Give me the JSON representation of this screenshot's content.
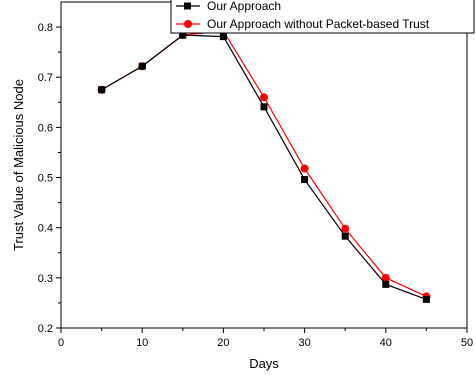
{
  "chart_data": {
    "type": "line",
    "x": [
      5,
      10,
      15,
      20,
      25,
      30,
      35,
      40,
      45
    ],
    "xlabel": "Days",
    "ylabel": "Trust Value of Malicious Node",
    "xlim": [
      0,
      50
    ],
    "ylim": [
      0.2,
      0.85
    ],
    "x_ticks": [
      "0",
      "10",
      "20",
      "30",
      "40",
      "50"
    ],
    "y_ticks": [
      "0.2",
      "0.3",
      "0.4",
      "0.5",
      "0.6",
      "0.7",
      "0.8"
    ],
    "grid": false,
    "legend_position": "top-right",
    "series": [
      {
        "name": "Our Approach",
        "color": "#000000",
        "marker": "square",
        "values": [
          0.675,
          0.722,
          0.784,
          0.781,
          0.641,
          0.496,
          0.383,
          0.287,
          0.257
        ]
      },
      {
        "name": "Our Approach without Packet-based Trust",
        "color": "#ff0000",
        "marker": "circle",
        "values": [
          0.675,
          0.722,
          0.784,
          0.792,
          0.66,
          0.518,
          0.398,
          0.3,
          0.263
        ]
      }
    ]
  }
}
